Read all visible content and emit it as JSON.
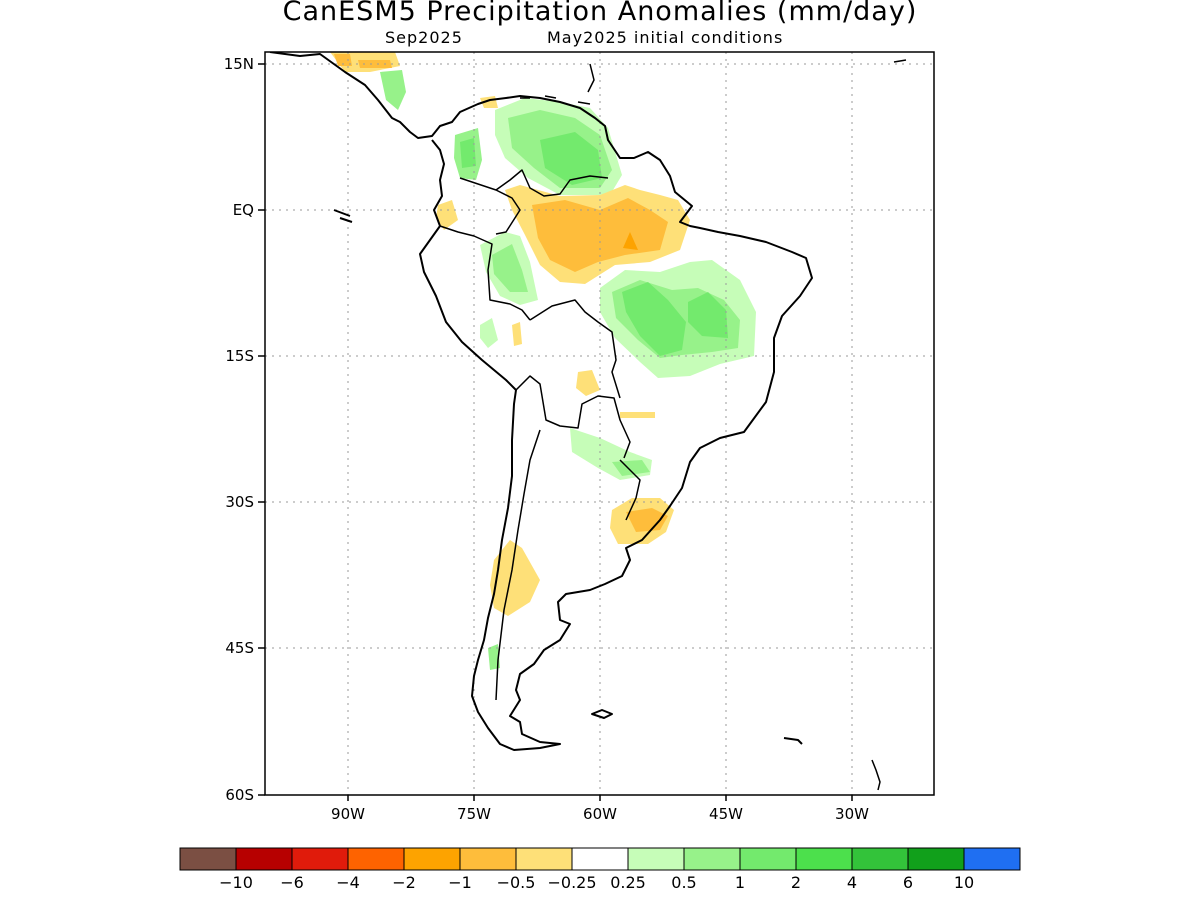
{
  "title": "CanESM5 Precipitation Anomalies (mm/day)",
  "subtitle_season": "Sep2025",
  "subtitle_ic": "May2025 initial conditions",
  "lat_labels": [
    "15N",
    "EQ",
    "15S",
    "30S",
    "45S",
    "60S"
  ],
  "lon_labels": [
    "90W",
    "75W",
    "60W",
    "45W",
    "30W"
  ],
  "colorbar": {
    "colors": [
      "#7b4f43",
      "#b70000",
      "#e01b0b",
      "#fe6300",
      "#fda300",
      "#febd3b",
      "#fee078",
      "#ffffff",
      "#c6fdb8",
      "#97f28a",
      "#73ea6d",
      "#4ce04c",
      "#33c33a",
      "#11a01b",
      "#1f6ff2"
    ],
    "labels": [
      "−10",
      "−6",
      "−4",
      "−2",
      "−1",
      "−0.5",
      "−0.25",
      "0.25",
      "0.5",
      "1",
      "2",
      "4",
      "6",
      "10"
    ]
  },
  "anomaly_regions": [
    {
      "name": "central-america-north",
      "level": "-1"
    },
    {
      "name": "guianas-venezuela-wet",
      "level": "2"
    },
    {
      "name": "colombia-pacific-wet",
      "level": "2"
    },
    {
      "name": "amazon-dry",
      "level": "-1"
    },
    {
      "name": "amazon-dry-core",
      "level": "-2"
    },
    {
      "name": "central-brazil-wet",
      "level": "2"
    },
    {
      "name": "peru-wet",
      "level": "1"
    },
    {
      "name": "paraguay-wet",
      "level": "0.5"
    },
    {
      "name": "uruguay-dry",
      "level": "-0.5"
    },
    {
      "name": "central-chile-dry",
      "level": "-0.5"
    },
    {
      "name": "bolivia-dry",
      "level": "-0.5"
    }
  ]
}
